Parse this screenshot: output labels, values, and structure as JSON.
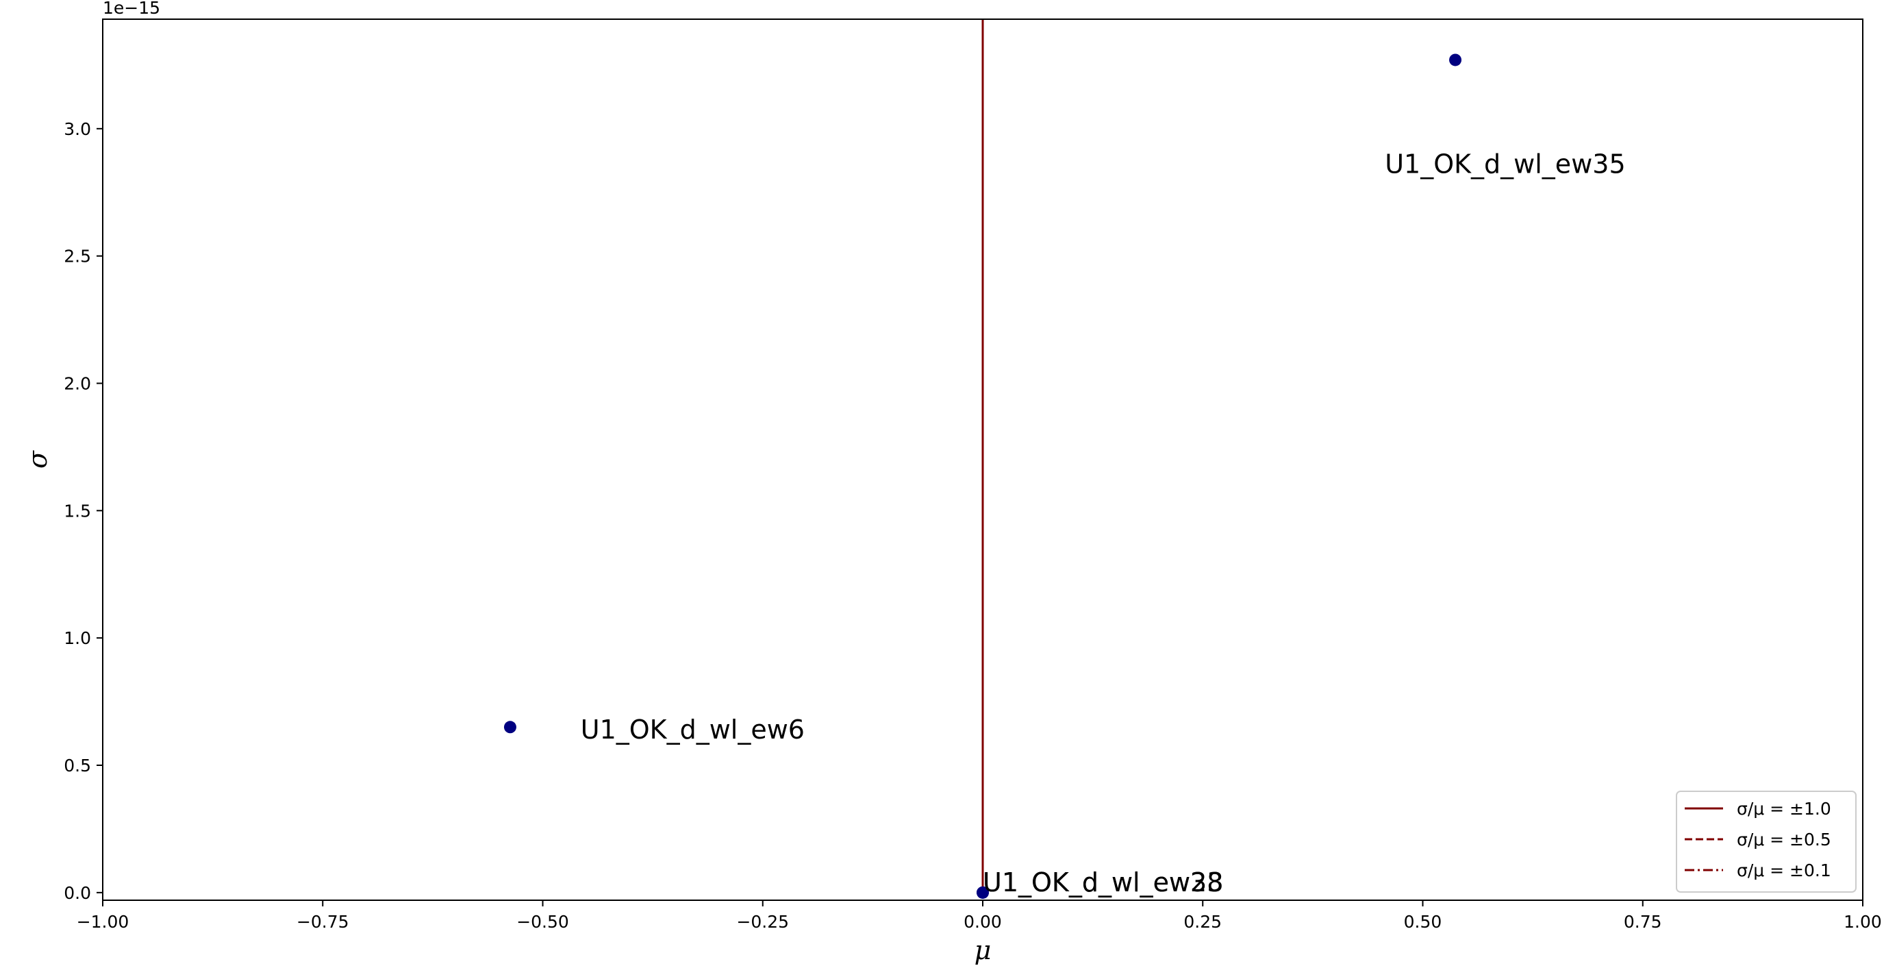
{
  "chart_data": {
    "type": "scatter",
    "xlabel": "μ",
    "ylabel": "σ",
    "y_offset_label": "1e−15",
    "xlim": [
      -1.0,
      1.0
    ],
    "ylim": [
      -0.03,
      3.43
    ],
    "x_ticks": [
      -1.0,
      -0.75,
      -0.5,
      -0.25,
      0.0,
      0.25,
      0.5,
      0.75,
      1.0
    ],
    "x_tick_labels": [
      "−1.00",
      "−0.75",
      "−0.50",
      "−0.25",
      "0.00",
      "0.25",
      "0.50",
      "0.75",
      "1.00"
    ],
    "y_ticks": [
      0.0,
      0.5,
      1.0,
      1.5,
      2.0,
      2.5,
      3.0
    ],
    "y_tick_labels": [
      "0.0",
      "0.5",
      "1.0",
      "1.5",
      "2.0",
      "2.5",
      "3.0"
    ],
    "grid": false,
    "point_color": "#000080",
    "line_color": "#800000",
    "points": [
      {
        "x": 0.537,
        "y": 3.27,
        "label": "U1_OK_d_wl_ew35",
        "label_dx": -0.08,
        "label_dy": -0.45
      },
      {
        "x": -0.537,
        "y": 0.65,
        "label": "U1_OK_d_wl_ew6",
        "label_dx": 0.08,
        "label_dy": -0.05
      },
      {
        "x": 0.0,
        "y": 0.0,
        "label": "U1_OK_d_wl_ew28",
        "label_dx": 0.0,
        "label_dy": 0.0
      },
      {
        "x": 0.0,
        "y": 0.0,
        "label": "U1_OK_d_wl_ew33",
        "label_dx": 0.0,
        "label_dy": 0.0
      }
    ],
    "ratio_lines": [
      {
        "ratio": 1.0,
        "style": "solid",
        "label": "σ/μ = ±1.0"
      },
      {
        "ratio": 0.5,
        "style": "dashed",
        "label": "σ/μ = ±0.5"
      },
      {
        "ratio": 0.1,
        "style": "dashdot",
        "label": "σ/μ = ±0.1"
      }
    ],
    "legend_position": "lower-right"
  }
}
